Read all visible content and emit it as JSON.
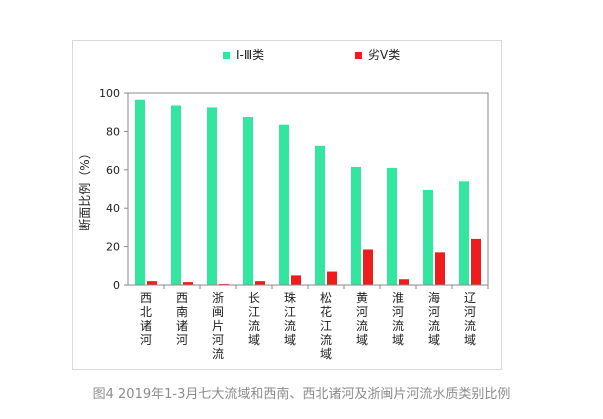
{
  "chart_data": {
    "type": "bar",
    "ylabel": "断面比例（%）",
    "ylim": [
      0,
      100
    ],
    "yticks": [
      0,
      20,
      40,
      60,
      80,
      100
    ],
    "categories": [
      "西北诸河",
      "西南诸河",
      "浙闽片河流",
      "长江流域",
      "珠江流域",
      "松花江流域",
      "黄河流域",
      "淮河流域",
      "海河流域",
      "辽河流域"
    ],
    "series": [
      {
        "name": "Ⅰ-Ⅲ类",
        "color": "#33e6a0",
        "values": [
          96.5,
          93.5,
          92.5,
          87.5,
          83.5,
          72.5,
          61.5,
          61,
          49.5,
          54
        ]
      },
      {
        "name": "劣Ⅴ类",
        "color": "#ee1c1c",
        "values": [
          2,
          1.5,
          0.5,
          2,
          5,
          7,
          18.5,
          3,
          17,
          24
        ]
      }
    ],
    "legend_position": "top"
  },
  "caption": "图4  2019年1-3月七大流域和西南、西北诸河及浙闽片河流水质类别比例"
}
